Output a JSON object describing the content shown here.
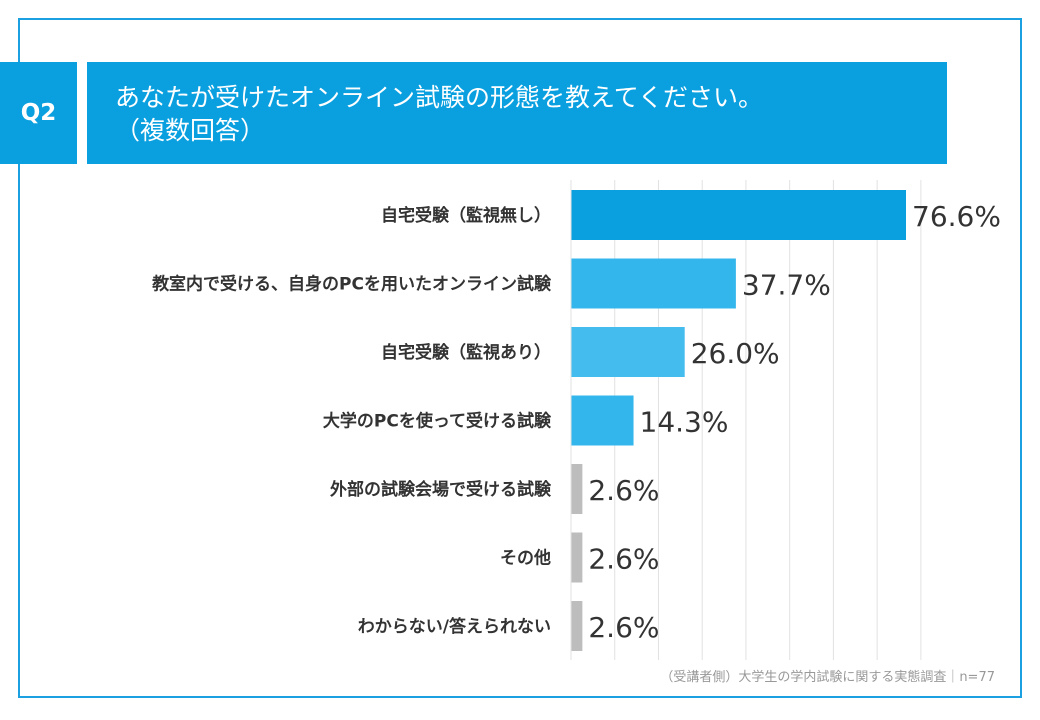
{
  "question": {
    "number": "Q2",
    "title_line1": "あなたが受けたオンライン試験の形態を教えてください。",
    "title_line2": "（複数回答）"
  },
  "chart_data": {
    "type": "bar",
    "orientation": "horizontal",
    "categories": [
      "自宅受験（監視無し）",
      "教室内で受ける、自身のPCを用いたオンライン試験",
      "自宅受験（監視あり）",
      "大学のPCを使って受ける試験",
      "外部の試験会場で受ける試験",
      "その他",
      "わからない/答えられない"
    ],
    "values": [
      76.6,
      37.7,
      26.0,
      14.3,
      2.6,
      2.6,
      2.6
    ],
    "value_labels": [
      "76.6%",
      "37.7%",
      "26.0%",
      "14.3%",
      "2.6%",
      "2.6%",
      "2.6%"
    ],
    "unit": "%",
    "xlim": [
      0,
      80
    ],
    "grid": true,
    "colors": [
      "#0aa0e0",
      "#33b6ec",
      "#45bcee",
      "#33b6ec",
      "#bdbdbd",
      "#bdbdbd",
      "#bdbdbd"
    ]
  },
  "footer": {
    "source": "（受講者側）大学生の学内試験に関する実態調査｜n=77"
  },
  "theme": {
    "accent": "#0aa0e0",
    "frame": "#1ba1e2",
    "gridline": "#e2e2e2"
  }
}
